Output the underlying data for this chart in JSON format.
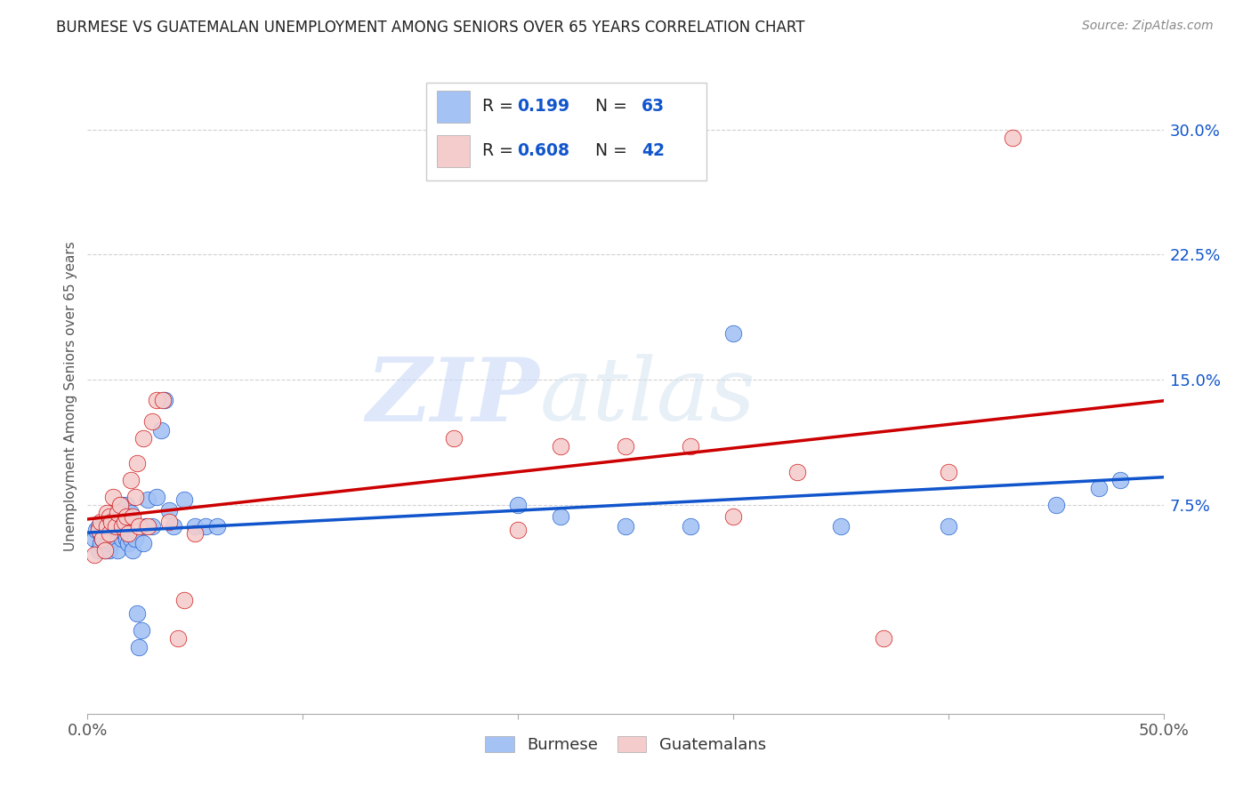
{
  "title": "BURMESE VS GUATEMALAN UNEMPLOYMENT AMONG SENIORS OVER 65 YEARS CORRELATION CHART",
  "source": "Source: ZipAtlas.com",
  "ylabel": "Unemployment Among Seniors over 65 years",
  "xlim": [
    0.0,
    0.5
  ],
  "ylim": [
    -0.05,
    0.33
  ],
  "xticks": [
    0.0,
    0.1,
    0.2,
    0.3,
    0.4,
    0.5
  ],
  "xticklabels": [
    "0.0%",
    "",
    "",
    "",
    "",
    "50.0%"
  ],
  "yticks": [
    0.075,
    0.15,
    0.225,
    0.3
  ],
  "yticklabels": [
    "7.5%",
    "15.0%",
    "22.5%",
    "30.0%"
  ],
  "burmese_color": "#a4c2f4",
  "guatemalan_color": "#f4cccc",
  "burmese_line_color": "#1155cc",
  "guatemalan_line_color": "#cc0000",
  "R_burmese": 0.199,
  "N_burmese": 63,
  "R_guatemalan": 0.608,
  "N_guatemalan": 42,
  "burmese_x": [
    0.003,
    0.004,
    0.005,
    0.005,
    0.006,
    0.006,
    0.007,
    0.007,
    0.008,
    0.008,
    0.009,
    0.009,
    0.01,
    0.01,
    0.01,
    0.011,
    0.011,
    0.012,
    0.012,
    0.013,
    0.013,
    0.014,
    0.014,
    0.015,
    0.015,
    0.016,
    0.016,
    0.017,
    0.017,
    0.018,
    0.018,
    0.019,
    0.019,
    0.02,
    0.02,
    0.021,
    0.022,
    0.023,
    0.024,
    0.025,
    0.026,
    0.027,
    0.028,
    0.03,
    0.032,
    0.034,
    0.036,
    0.038,
    0.04,
    0.045,
    0.05,
    0.055,
    0.06,
    0.2,
    0.22,
    0.25,
    0.28,
    0.3,
    0.35,
    0.4,
    0.45,
    0.47,
    0.48
  ],
  "burmese_y": [
    0.055,
    0.06,
    0.048,
    0.062,
    0.052,
    0.058,
    0.055,
    0.06,
    0.048,
    0.065,
    0.052,
    0.06,
    0.048,
    0.055,
    0.065,
    0.052,
    0.06,
    0.058,
    0.062,
    0.055,
    0.065,
    0.048,
    0.06,
    0.062,
    0.068,
    0.055,
    0.075,
    0.058,
    0.07,
    0.055,
    0.075,
    0.052,
    0.068,
    0.055,
    0.07,
    0.048,
    0.055,
    0.01,
    -0.01,
    0.0,
    0.052,
    0.062,
    0.078,
    0.062,
    0.08,
    0.12,
    0.138,
    0.072,
    0.062,
    0.078,
    0.062,
    0.062,
    0.062,
    0.075,
    0.068,
    0.062,
    0.062,
    0.178,
    0.062,
    0.062,
    0.075,
    0.085,
    0.09
  ],
  "guatemalan_x": [
    0.003,
    0.005,
    0.006,
    0.007,
    0.008,
    0.009,
    0.009,
    0.01,
    0.01,
    0.011,
    0.012,
    0.013,
    0.014,
    0.015,
    0.016,
    0.017,
    0.018,
    0.019,
    0.02,
    0.021,
    0.022,
    0.023,
    0.024,
    0.026,
    0.028,
    0.03,
    0.032,
    0.035,
    0.038,
    0.042,
    0.045,
    0.05,
    0.17,
    0.2,
    0.22,
    0.25,
    0.28,
    0.3,
    0.33,
    0.37,
    0.4,
    0.43
  ],
  "guatemalan_y": [
    0.045,
    0.06,
    0.065,
    0.055,
    0.048,
    0.07,
    0.062,
    0.058,
    0.068,
    0.065,
    0.08,
    0.062,
    0.07,
    0.075,
    0.062,
    0.065,
    0.068,
    0.058,
    0.09,
    0.068,
    0.08,
    0.1,
    0.062,
    0.115,
    0.062,
    0.125,
    0.138,
    0.138,
    0.065,
    -0.005,
    0.018,
    0.058,
    0.115,
    0.06,
    0.11,
    0.11,
    0.11,
    0.068,
    0.095,
    -0.005,
    0.095,
    0.295
  ],
  "watermark_zip": "ZIP",
  "watermark_atlas": "atlas",
  "background_color": "#ffffff",
  "grid_color": "#cccccc",
  "blue_accent": "#1155cc"
}
